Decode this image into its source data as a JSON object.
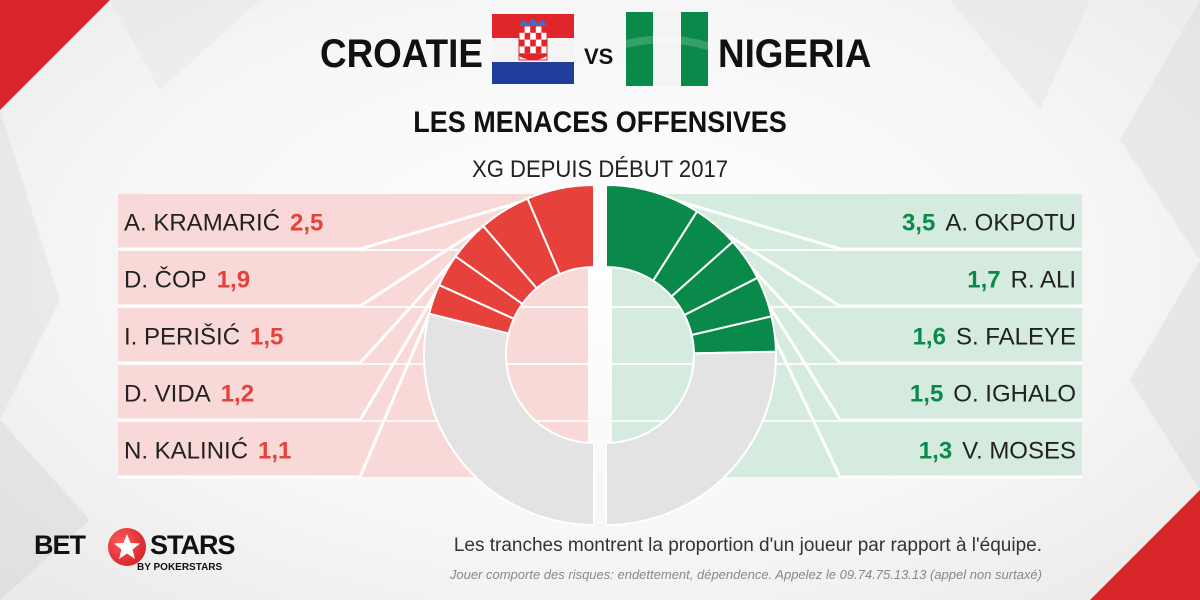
{
  "header": {
    "team_home": "CROATIE",
    "vs": "VS",
    "team_away": "NIGERIA",
    "subtitle": "LES MENACES OFFENSIVES",
    "metric": "XG DEPUIS DÉBUT 2017"
  },
  "colors": {
    "home": "#e6423b",
    "home_light": "#f8d9d7",
    "away": "#0a8a4a",
    "away_light": "#d5ebdf",
    "rest": "#e3e3e3",
    "brand_red": "#d9262a"
  },
  "chart_data": {
    "type": "donut",
    "title": "LES MENACES OFFENSIVES",
    "subtitle": "XG DEPUIS DÉBUT 2017",
    "series": [
      {
        "name": "CROATIE",
        "players": [
          "A. KRAMARIĆ",
          "D. ČOP",
          "I. PERIŠIĆ",
          "D. VIDA",
          "N. KALINIĆ"
        ],
        "values": [
          2.5,
          1.9,
          1.5,
          1.2,
          1.1
        ],
        "labels": [
          "2,5",
          "1,9",
          "1,5",
          "1,2",
          "1,1"
        ],
        "share_of_half": [
          0.128,
          0.098,
          0.077,
          0.062,
          0.057
        ]
      },
      {
        "name": "NIGERIA",
        "players": [
          "A. OKPOTU",
          "R. ALI",
          "S. FALEYE",
          "O. IGHALO",
          "V. MOSES"
        ],
        "values": [
          3.5,
          1.7,
          1.6,
          1.5,
          1.3
        ],
        "labels": [
          "3,5",
          "1,7",
          "1,6",
          "1,5",
          "1,3"
        ],
        "share_of_half": [
          0.18,
          0.088,
          0.082,
          0.077,
          0.067
        ]
      }
    ]
  },
  "footer": {
    "note": "Les tranches montrent la proportion d'un joueur par rapport à l'équipe.",
    "disclaimer": "Jouer comporte des risques: endettement, dépendence. Appelez le 09.74.75.13.13 (appel non surtaxé)"
  },
  "logo": {
    "word_a": "BET",
    "word_b": "STARS",
    "sub": "BY POKERSTARS"
  }
}
